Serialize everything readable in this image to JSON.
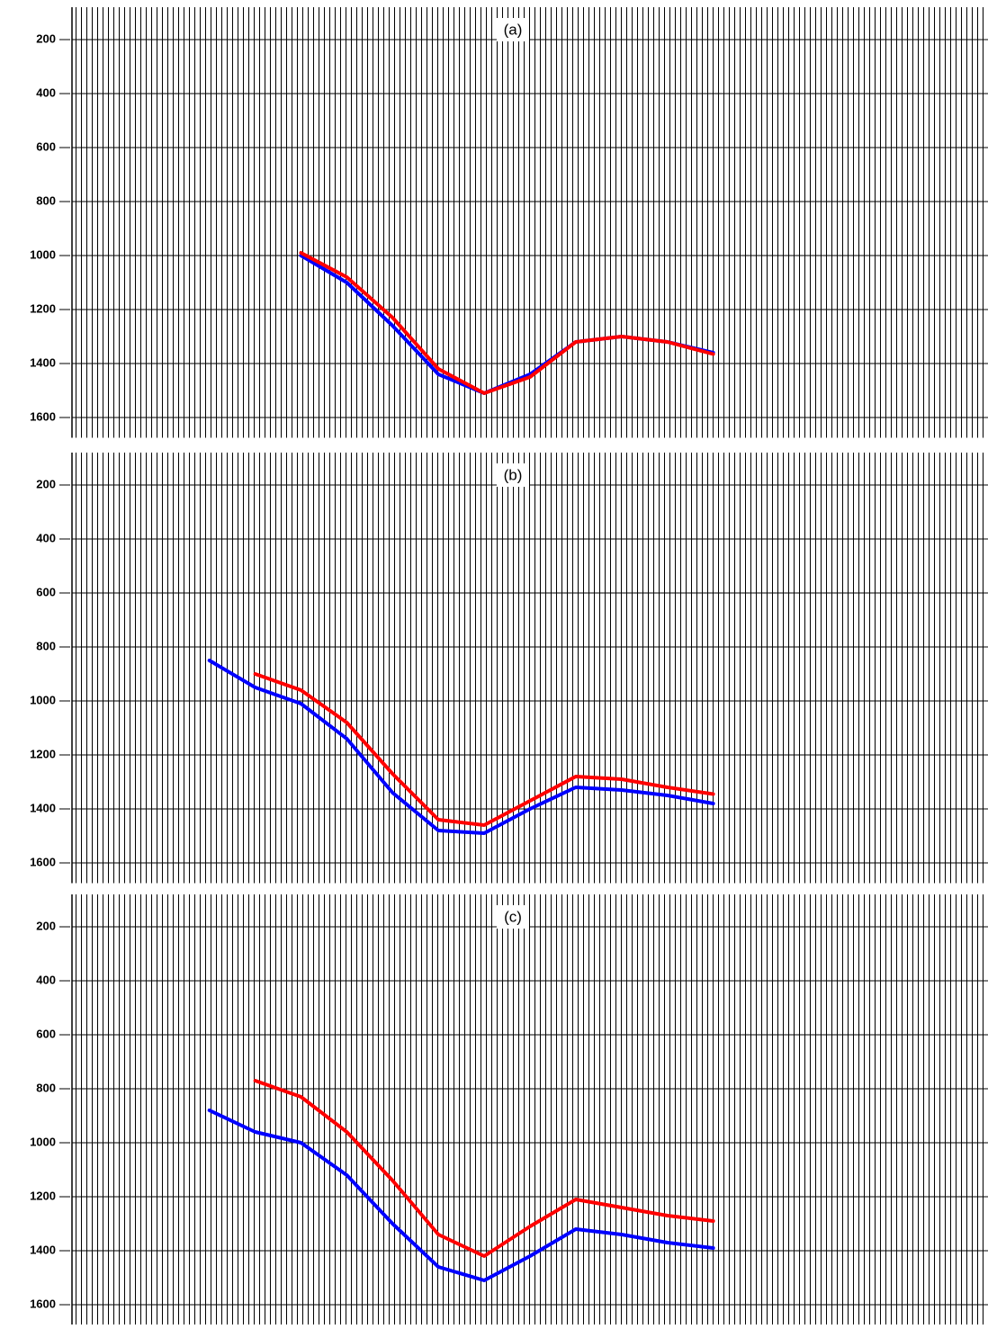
{
  "chart_data": [
    {
      "type": "line",
      "title": "(a)",
      "x": [
        15,
        20,
        25,
        30,
        35,
        40,
        45,
        50,
        55,
        60,
        65,
        70,
        75
      ],
      "xlim": [
        0,
        100
      ],
      "ylim": [
        80,
        1675
      ],
      "y_inverted": true,
      "yticks": [
        200,
        400,
        600,
        800,
        1000,
        1200,
        1400,
        1600
      ],
      "grid": true,
      "series": [
        {
          "color": "#0000ff",
          "values": [
            null,
            null,
            1000,
            1100,
            1260,
            1440,
            1510,
            1440,
            1320,
            1300,
            1320,
            1360,
            null
          ]
        },
        {
          "color": "#ff0000",
          "values": [
            null,
            null,
            990,
            1080,
            1230,
            1420,
            1510,
            1450,
            1320,
            1300,
            1320,
            1365,
            null
          ]
        }
      ]
    },
    {
      "type": "line",
      "title": "(b)",
      "x": [
        15,
        20,
        25,
        30,
        35,
        40,
        45,
        50,
        55,
        60,
        65,
        70,
        75
      ],
      "xlim": [
        0,
        100
      ],
      "ylim": [
        80,
        1675
      ],
      "y_inverted": true,
      "yticks": [
        200,
        400,
        600,
        800,
        1000,
        1200,
        1400,
        1600
      ],
      "grid": true,
      "series": [
        {
          "color": "#0000ff",
          "values": [
            850,
            950,
            1010,
            1140,
            1340,
            1480,
            1490,
            1400,
            1320,
            1330,
            1350,
            1380,
            null
          ]
        },
        {
          "color": "#ff0000",
          "values": [
            null,
            900,
            960,
            1080,
            1270,
            1440,
            1460,
            1370,
            1280,
            1290,
            1320,
            1345,
            null
          ]
        }
      ]
    },
    {
      "type": "line",
      "title": "(c)",
      "x": [
        15,
        20,
        25,
        30,
        35,
        40,
        45,
        50,
        55,
        60,
        65,
        70,
        75
      ],
      "xlim": [
        0,
        100
      ],
      "ylim": [
        80,
        1675
      ],
      "y_inverted": true,
      "yticks": [
        200,
        400,
        600,
        800,
        1000,
        1200,
        1400,
        1600
      ],
      "grid": true,
      "series": [
        {
          "color": "#0000ff",
          "values": [
            880,
            960,
            1000,
            1120,
            1300,
            1460,
            1510,
            1420,
            1320,
            1340,
            1370,
            1390,
            null
          ]
        },
        {
          "color": "#ff0000",
          "values": [
            null,
            770,
            830,
            960,
            1140,
            1340,
            1420,
            1310,
            1210,
            1240,
            1270,
            1290,
            null
          ]
        }
      ]
    }
  ]
}
